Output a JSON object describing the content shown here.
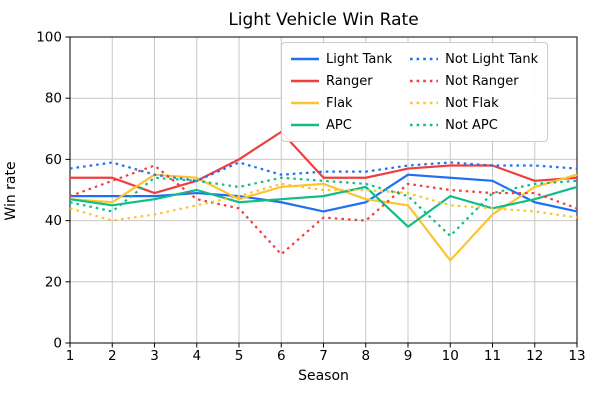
{
  "figure": {
    "background": "#ffffff",
    "grid_color": "#c8c8c8",
    "axis_color": "#000000"
  },
  "chart_data": {
    "type": "line",
    "title": "Light Vehicle Win Rate",
    "xlabel": "Season",
    "ylabel": "Win rate",
    "x": [
      1,
      2,
      3,
      4,
      5,
      6,
      7,
      8,
      9,
      10,
      11,
      12,
      13
    ],
    "xlim": [
      1,
      13
    ],
    "ylim": [
      0,
      100
    ],
    "yticks": [
      0,
      20,
      40,
      60,
      80,
      100
    ],
    "grid": true,
    "legend_position": "upper center",
    "legend_columns": 2,
    "series": [
      {
        "name": "Light Tank",
        "style": "solid",
        "color": "#1f6ff2",
        "values": [
          48,
          48,
          48,
          49,
          48,
          46,
          43,
          46,
          55,
          54,
          53,
          46,
          43
        ]
      },
      {
        "name": "Ranger",
        "style": "solid",
        "color": "#f03e3e",
        "values": [
          54,
          54,
          49,
          53,
          60,
          69,
          54,
          54,
          57,
          58,
          58,
          53,
          54
        ]
      },
      {
        "name": "Flak",
        "style": "solid",
        "color": "#fcc430",
        "values": [
          47,
          46,
          55,
          54,
          47,
          51,
          52,
          47,
          45,
          27,
          42,
          51,
          55
        ]
      },
      {
        "name": "APC",
        "style": "solid",
        "color": "#12bd85",
        "values": [
          47,
          45,
          47,
          50,
          46,
          47,
          48,
          51,
          38,
          48,
          44,
          47,
          51
        ]
      },
      {
        "name": "Not Light Tank",
        "style": "dotted",
        "color": "#1f6ff2",
        "values": [
          57,
          59,
          55,
          53,
          59,
          55,
          56,
          56,
          58,
          59,
          58,
          58,
          57
        ]
      },
      {
        "name": "Not Ranger",
        "style": "dotted",
        "color": "#f03e3e",
        "values": [
          48,
          53,
          58,
          47,
          44,
          29,
          41,
          40,
          52,
          50,
          49,
          49,
          44
        ]
      },
      {
        "name": "Not Flak",
        "style": "dotted",
        "color": "#fcc430",
        "values": [
          44,
          40,
          42,
          45,
          48,
          52,
          50,
          50,
          49,
          45,
          44,
          43,
          41
        ]
      },
      {
        "name": "Not APC",
        "style": "dotted",
        "color": "#12bd85",
        "values": [
          46,
          43,
          54,
          53,
          51,
          54,
          53,
          52,
          48,
          35,
          49,
          52,
          53
        ]
      }
    ]
  }
}
